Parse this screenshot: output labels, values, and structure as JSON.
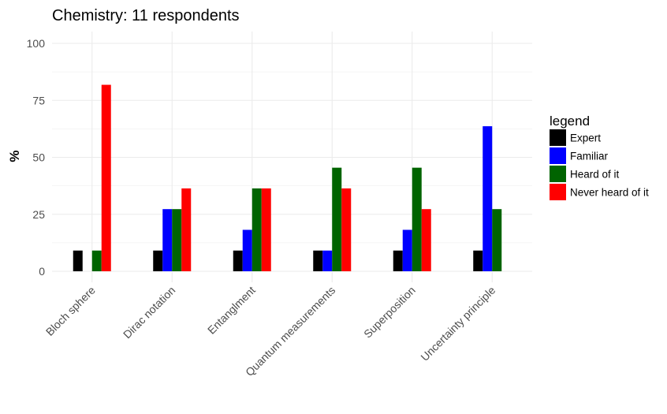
{
  "chart_data": {
    "type": "bar",
    "title": "Chemistry: 11 respondents",
    "xlabel": "",
    "ylabel": "%",
    "ylim": [
      0,
      100
    ],
    "yticks": [
      0,
      25,
      50,
      75,
      100
    ],
    "grid": true,
    "legend_title": "legend",
    "legend_position": "right",
    "categories": [
      "Bloch sphere",
      "Dirac notation",
      "Entanglment",
      "Quantum measurements",
      "Superposition",
      "Uncertainty principle"
    ],
    "series": [
      {
        "name": "Expert",
        "color": "#000000",
        "values": [
          9.09,
          9.09,
          9.09,
          9.09,
          9.09,
          9.09
        ]
      },
      {
        "name": "Familiar",
        "color": "#0000ff",
        "values": [
          0,
          27.27,
          18.18,
          9.09,
          18.18,
          63.64
        ]
      },
      {
        "name": "Heard of it",
        "color": "#006400",
        "values": [
          9.09,
          27.27,
          36.36,
          45.45,
          45.45,
          27.27
        ]
      },
      {
        "name": "Never heard of it",
        "color": "#ff0000",
        "values": [
          81.82,
          36.36,
          36.36,
          36.36,
          27.27,
          0
        ]
      }
    ]
  }
}
